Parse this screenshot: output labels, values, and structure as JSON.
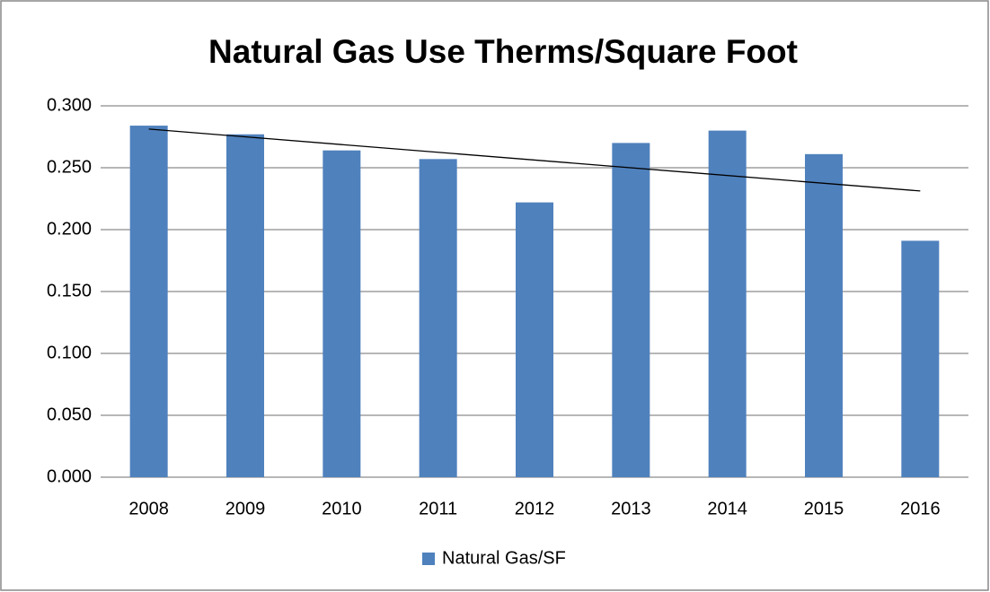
{
  "chart_data": {
    "type": "bar",
    "title": "Natural Gas Use Therms/Square Foot",
    "categories": [
      "2008",
      "2009",
      "2010",
      "2011",
      "2012",
      "2013",
      "2014",
      "2015",
      "2016"
    ],
    "series": [
      {
        "name": "Natural Gas/SF",
        "color": "#4f81bd",
        "values": [
          0.284,
          0.277,
          0.264,
          0.257,
          0.222,
          0.27,
          0.28,
          0.261,
          0.191
        ]
      }
    ],
    "ylim": [
      0,
      0.3
    ],
    "yticks": [
      {
        "value": 0,
        "label": "0.000"
      },
      {
        "value": 0.05,
        "label": "0.050"
      },
      {
        "value": 0.1,
        "label": "0.100"
      },
      {
        "value": 0.15,
        "label": "0.150"
      },
      {
        "value": 0.2,
        "label": "0.200"
      },
      {
        "value": 0.25,
        "label": "0.250"
      },
      {
        "value": 0.3,
        "label": "0.300"
      }
    ],
    "grid": true,
    "trendline": "linear",
    "legend": "bottom"
  }
}
